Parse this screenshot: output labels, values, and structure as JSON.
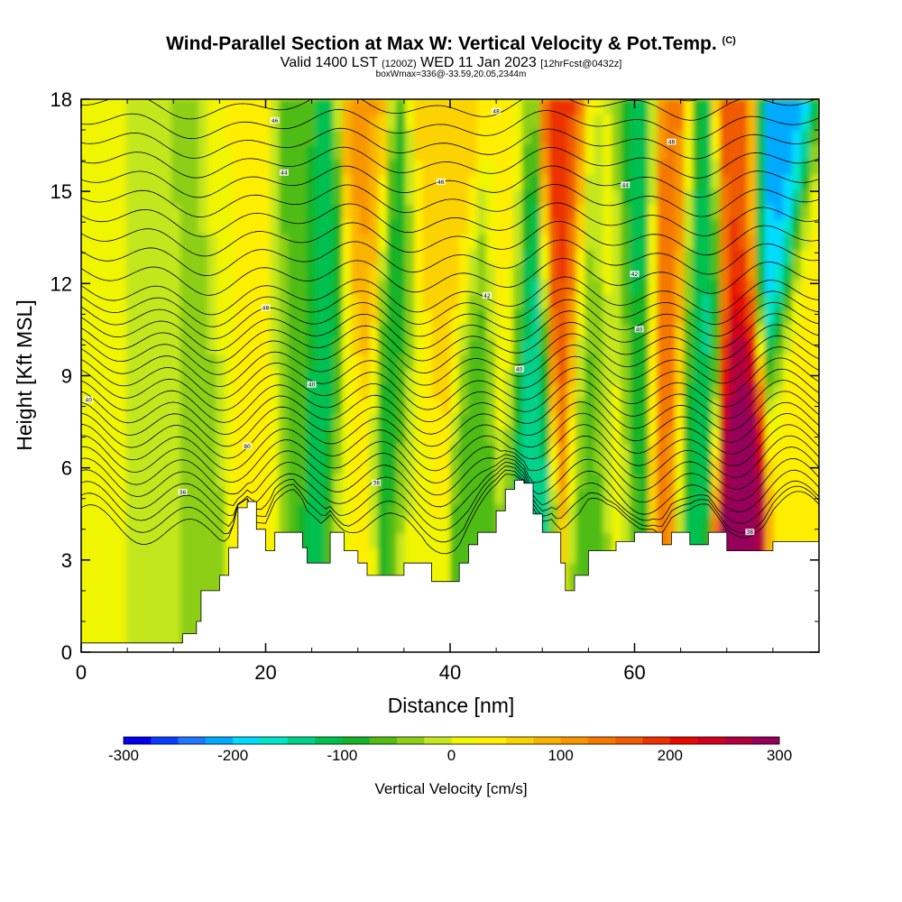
{
  "header": {
    "title": "Wind-Parallel Section at Max W: Vertical Velocity & Pot.Temp.",
    "copyright": "(C)",
    "valid_prefix": "Valid 1400 LST",
    "valid_utc": "(1200Z)",
    "valid_date": "WED 11 Jan 2023",
    "forecast": "[12hrFcst@0432z]",
    "box_info": "boxWmax=336@-33.59,20.05,2344m"
  },
  "chart_data": {
    "type": "heatmap",
    "xlabel": "Distance [nm]",
    "ylabel": "Height [Kft MSL]",
    "xlim": [
      0,
      80
    ],
    "ylim": [
      0,
      18
    ],
    "x_ticks": [
      "0",
      "20",
      "40",
      "60"
    ],
    "x_tick_values": [
      0,
      20,
      40,
      60
    ],
    "y_ticks": [
      "0",
      "3",
      "6",
      "9",
      "12",
      "15",
      "18"
    ],
    "y_tick_values": [
      0,
      3,
      6,
      9,
      12,
      15,
      18
    ],
    "colorbar": {
      "label": "Vertical Velocity [cm/s]",
      "ticks": [
        "-300",
        "-200",
        "-100",
        "0",
        "100",
        "200",
        "300"
      ],
      "range": [
        -300,
        300
      ],
      "colors": [
        "#0000f0",
        "#0a3cff",
        "#1e78ff",
        "#00aaff",
        "#00dcff",
        "#00e6c8",
        "#00d28c",
        "#00c050",
        "#14b428",
        "#50bc14",
        "#8ccf14",
        "#c4e61e",
        "#f0f500",
        "#ffee00",
        "#fcd200",
        "#fab400",
        "#f89600",
        "#f57800",
        "#f05a00",
        "#eb3200",
        "#e60a00",
        "#d2001e",
        "#b4003c",
        "#96005a"
      ]
    },
    "terrain_kft": [
      [
        0,
        0.3
      ],
      [
        10,
        0.3
      ],
      [
        11,
        0.6
      ],
      [
        12.5,
        1.0
      ],
      [
        13,
        2.0
      ],
      [
        14,
        2.0
      ],
      [
        15,
        2.5
      ],
      [
        16,
        3.4
      ],
      [
        17,
        4.7
      ],
      [
        18,
        4.9
      ],
      [
        19,
        4.0
      ],
      [
        20,
        3.3
      ],
      [
        21,
        3.9
      ],
      [
        23,
        3.9
      ],
      [
        24,
        3.4
      ],
      [
        24.5,
        2.9
      ],
      [
        26,
        2.9
      ],
      [
        27,
        3.9
      ],
      [
        28.5,
        3.3
      ],
      [
        30,
        2.9
      ],
      [
        31,
        2.5
      ],
      [
        34,
        2.5
      ],
      [
        35,
        2.9
      ],
      [
        37,
        2.9
      ],
      [
        38,
        2.3
      ],
      [
        40,
        2.3
      ],
      [
        41,
        2.9
      ],
      [
        42,
        3.5
      ],
      [
        43,
        3.9
      ],
      [
        45,
        4.6
      ],
      [
        46,
        5.3
      ],
      [
        47,
        5.6
      ],
      [
        48,
        5.5
      ],
      [
        49,
        4.5
      ],
      [
        50,
        3.9
      ],
      [
        51,
        3.9
      ],
      [
        52,
        2.9
      ],
      [
        52.5,
        2.0
      ],
      [
        53.5,
        2.5
      ],
      [
        55,
        3.3
      ],
      [
        57,
        3.3
      ],
      [
        58,
        3.6
      ],
      [
        60,
        3.9
      ],
      [
        62,
        3.9
      ],
      [
        63,
        3.5
      ],
      [
        64,
        3.9
      ],
      [
        66,
        3.5
      ],
      [
        68,
        3.9
      ],
      [
        70,
        3.3
      ],
      [
        74,
        3.3
      ],
      [
        75,
        3.6
      ],
      [
        80,
        3.6
      ]
    ],
    "w_cells": [
      {
        "x": 2,
        "z": 9,
        "w": 5
      },
      {
        "x": 8,
        "z": 7,
        "w": -10
      },
      {
        "x": 13,
        "z": 9,
        "w": -35
      },
      {
        "x": 16,
        "z": 14,
        "w": 25
      },
      {
        "x": 19,
        "z": 10,
        "w": 45
      },
      {
        "x": 23,
        "z": 11,
        "w": -55
      },
      {
        "x": 26.5,
        "z": 9,
        "w": -130
      },
      {
        "x": 29,
        "z": 6,
        "w": 30
      },
      {
        "x": 31,
        "z": 14,
        "w": 105
      },
      {
        "x": 34,
        "z": 10,
        "w": -115
      },
      {
        "x": 36,
        "z": 7,
        "w": 15
      },
      {
        "x": 38,
        "z": 13,
        "w": 60
      },
      {
        "x": 41,
        "z": 15,
        "w": 75
      },
      {
        "x": 43,
        "z": 9,
        "w": -75
      },
      {
        "x": 46,
        "z": 12,
        "w": 45
      },
      {
        "x": 48.5,
        "z": 9,
        "w": -150
      },
      {
        "x": 52.5,
        "z": 13,
        "w": 190
      },
      {
        "x": 55,
        "z": 10,
        "w": -70
      },
      {
        "x": 57.5,
        "z": 12,
        "w": 20
      },
      {
        "x": 60,
        "z": 14,
        "w": -120
      },
      {
        "x": 64,
        "z": 13,
        "w": 150
      },
      {
        "x": 67,
        "z": 11,
        "w": -130
      },
      {
        "x": 71.5,
        "z": 6.5,
        "w": 290
      },
      {
        "x": 71.5,
        "z": 15.5,
        "w": 170
      },
      {
        "x": 75,
        "z": 15,
        "w": -215
      },
      {
        "x": 77,
        "z": 7,
        "w": 40
      }
    ],
    "isentrope_labels": [
      {
        "x": 21,
        "z": 17.3,
        "text": "46"
      },
      {
        "x": 22,
        "z": 15.6,
        "text": "44"
      },
      {
        "x": 45,
        "z": 17.6,
        "text": "48"
      },
      {
        "x": 39,
        "z": 15.3,
        "text": "46"
      },
      {
        "x": 64,
        "z": 16.6,
        "text": "48"
      },
      {
        "x": 59,
        "z": 15.2,
        "text": "44"
      },
      {
        "x": 20,
        "z": 11.2,
        "text": "48"
      },
      {
        "x": 44,
        "z": 11.6,
        "text": "42"
      },
      {
        "x": 60,
        "z": 12.3,
        "text": "42"
      },
      {
        "x": 60.5,
        "z": 10.5,
        "text": "40"
      },
      {
        "x": 0.8,
        "z": 8.2,
        "text": "40"
      },
      {
        "x": 25,
        "z": 8.7,
        "text": "40"
      },
      {
        "x": 47.5,
        "z": 9.2,
        "text": "40"
      },
      {
        "x": 18,
        "z": 6.7,
        "text": "80"
      },
      {
        "x": 11,
        "z": 5.2,
        "text": "36"
      },
      {
        "x": 32,
        "z": 5.5,
        "text": "38"
      },
      {
        "x": 72.5,
        "z": 3.9,
        "text": "38"
      }
    ]
  }
}
